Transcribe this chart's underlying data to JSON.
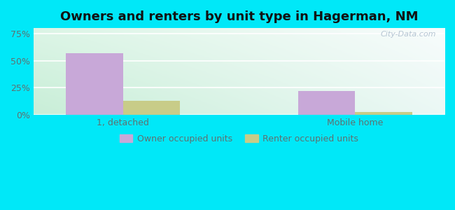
{
  "title": "Owners and renters by unit type in Hagerman, NM",
  "categories": [
    "1, detached",
    "Mobile home"
  ],
  "owner_values": [
    57.1,
    22.2
  ],
  "renter_values": [
    13.0,
    3.0
  ],
  "owner_color": "#c8a8d8",
  "renter_color": "#c8cc88",
  "bg_color": "#00e8f8",
  "yticks": [
    0,
    25,
    50,
    75
  ],
  "ytick_labels": [
    "0%",
    "25%",
    "50%",
    "75%"
  ],
  "ylim": [
    0,
    80
  ],
  "bar_width": 0.32,
  "legend_labels": [
    "Owner occupied units",
    "Renter occupied units"
  ],
  "watermark": "City-Data.com",
  "title_fontsize": 13,
  "tick_fontsize": 9,
  "legend_fontsize": 9,
  "x_positions": [
    0.0,
    1.3
  ],
  "xlim": [
    -0.5,
    1.8
  ]
}
